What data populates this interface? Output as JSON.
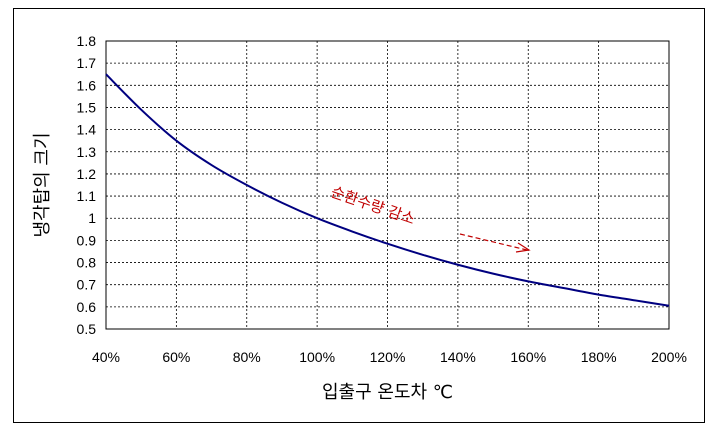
{
  "chart_data": {
    "type": "line",
    "title": "",
    "xlabel": "입출구 온도차 ℃",
    "ylabel": "냉각탑의 크기",
    "x_ticks": [
      "40%",
      "60%",
      "80%",
      "100%",
      "120%",
      "140%",
      "160%",
      "180%",
      "200%"
    ],
    "y_ticks": [
      "0.5",
      "0.6",
      "0.7",
      "0.8",
      "0.9",
      "1",
      "1.1",
      "1.2",
      "1.3",
      "1.4",
      "1.5",
      "1.6",
      "1.7",
      "1.8"
    ],
    "xlim": [
      40,
      200
    ],
    "ylim": [
      0.5,
      1.8
    ],
    "grid": true,
    "series": [
      {
        "color": "#000080",
        "x": [
          40,
          50,
          60,
          70,
          80,
          90,
          100,
          110,
          120,
          130,
          140,
          150,
          160,
          170,
          180,
          190,
          200
        ],
        "y": [
          1.65,
          1.49,
          1.35,
          1.24,
          1.15,
          1.07,
          1.0,
          0.94,
          0.885,
          0.835,
          0.79,
          0.75,
          0.715,
          0.685,
          0.655,
          0.63,
          0.605
        ]
      }
    ],
    "annotation": {
      "text": "순환수량 감소",
      "color": "#c00000"
    }
  }
}
